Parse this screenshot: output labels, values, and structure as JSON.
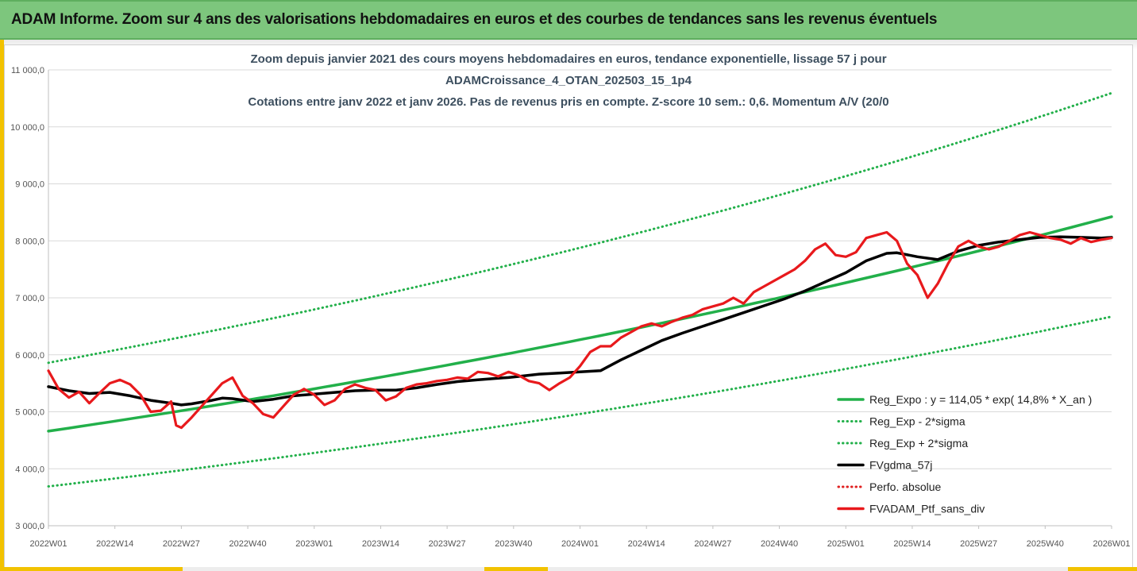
{
  "banner": {
    "title": "ADAM Informe. Zoom sur 4 ans des valorisations hebdomadaires en euros et des courbes de tendances sans les revenus éventuels"
  },
  "colors": {
    "banner_bg": "#7dc67d",
    "accent_yellow": "#f2c200",
    "title_text": "#3d4f5f"
  },
  "chart_data": {
    "type": "line",
    "title_lines": [
      "Zoom depuis janvier 2021 des cours moyens hebdomadaires  en euros, tendance exponentielle, lissage 57 j pour",
      "ADAMCroissance_4_OTAN_202503_15_1p4",
      "Cotations entre janv 2022 et janv 2026. Pas de revenus pris en compte. Z-score 10 sem.: 0,6. Momentum A/V (20/0"
    ],
    "xlabel": "",
    "ylabel": "",
    "ylim": [
      3000,
      11000
    ],
    "yticks": [
      3000,
      4000,
      5000,
      6000,
      7000,
      8000,
      9000,
      10000,
      11000
    ],
    "ytick_labels": [
      "3 000,0",
      "4 000,0",
      "5 000,0",
      "6 000,0",
      "7 000,0",
      "8 000,0",
      "9 000,0",
      "10 000,0",
      "11 000,0"
    ],
    "xlim": [
      0,
      208
    ],
    "xticks": [
      0,
      13,
      26,
      39,
      52,
      65,
      78,
      91,
      104,
      117,
      130,
      143,
      156,
      169,
      182,
      195,
      208
    ],
    "xtick_labels": [
      "2022W01",
      "2022W14",
      "2022W27",
      "2022W40",
      "2023W01",
      "2023W14",
      "2023W27",
      "2023W40",
      "2024W01",
      "2024W14",
      "2024W27",
      "2024W40",
      "2025W01",
      "2025W14",
      "2025W27",
      "2025W40",
      "2026W01"
    ],
    "grid": "horizontal",
    "legend_position": "bottom-right",
    "series": [
      {
        "name": "Reg_Expo : y = 114,05 * exp( 14,8% *  X_an )",
        "style": "solid",
        "color": "#22b04a",
        "x": [
          0,
          208
        ],
        "growth_per_year": 0.148,
        "start_value": 4660
      },
      {
        "name": "Reg_Exp - 2*sigma",
        "style": "dotted",
        "color": "#22b04a",
        "x": [
          0,
          208
        ],
        "growth_per_year": 0.148,
        "start_value": 3690
      },
      {
        "name": "Reg_Exp + 2*sigma",
        "style": "dotted",
        "color": "#22b04a",
        "x": [
          0,
          208
        ],
        "growth_per_year": 0.148,
        "start_value": 5860
      },
      {
        "name": "FVgdma_57j",
        "style": "solid",
        "color": "#000000",
        "x": [
          0,
          4,
          8,
          12,
          16,
          20,
          24,
          26,
          28,
          32,
          34,
          36,
          40,
          44,
          48,
          52,
          56,
          60,
          64,
          68,
          72,
          76,
          80,
          84,
          88,
          90,
          92,
          96,
          100,
          104,
          108,
          112,
          116,
          120,
          124,
          128,
          132,
          136,
          140,
          144,
          148,
          152,
          156,
          160,
          164,
          166,
          170,
          174,
          178,
          182,
          186,
          190,
          194,
          198,
          202,
          206,
          208
        ],
        "values": [
          5440,
          5370,
          5320,
          5340,
          5280,
          5200,
          5150,
          5120,
          5140,
          5200,
          5240,
          5230,
          5180,
          5220,
          5280,
          5310,
          5340,
          5370,
          5380,
          5380,
          5420,
          5480,
          5530,
          5560,
          5590,
          5600,
          5620,
          5660,
          5680,
          5700,
          5720,
          5910,
          6080,
          6250,
          6380,
          6500,
          6620,
          6740,
          6860,
          6980,
          7120,
          7280,
          7440,
          7650,
          7780,
          7790,
          7720,
          7670,
          7820,
          7920,
          7980,
          8020,
          8060,
          8070,
          8060,
          8050,
          8060
        ]
      },
      {
        "name": "Perfo. absolue",
        "style": "dotted",
        "color": "#e02020",
        "x": [],
        "values": []
      },
      {
        "name": "FVADAM_Ptf_sans_div",
        "style": "solid",
        "color": "#e8191c",
        "x": [
          0,
          2,
          4,
          6,
          8,
          10,
          12,
          14,
          16,
          18,
          20,
          22,
          24,
          25,
          26,
          28,
          30,
          32,
          34,
          36,
          38,
          40,
          42,
          44,
          46,
          48,
          50,
          52,
          54,
          56,
          58,
          60,
          62,
          64,
          66,
          68,
          70,
          72,
          74,
          76,
          78,
          80,
          82,
          84,
          86,
          88,
          90,
          92,
          94,
          96,
          98,
          100,
          102,
          104,
          106,
          108,
          110,
          112,
          114,
          116,
          118,
          120,
          122,
          124,
          126,
          128,
          130,
          132,
          134,
          136,
          138,
          140,
          142,
          144,
          146,
          148,
          150,
          152,
          154,
          156,
          158,
          160,
          162,
          164,
          166,
          168,
          170,
          172,
          174,
          176,
          178,
          180,
          182,
          184,
          186,
          188,
          190,
          192,
          194,
          196,
          198,
          200,
          202,
          204,
          206,
          208
        ],
        "values": [
          5720,
          5400,
          5250,
          5350,
          5150,
          5330,
          5500,
          5560,
          5480,
          5300,
          5000,
          5020,
          5180,
          4760,
          4720,
          4900,
          5100,
          5300,
          5500,
          5600,
          5280,
          5150,
          4960,
          4900,
          5100,
          5300,
          5400,
          5300,
          5120,
          5200,
          5400,
          5480,
          5420,
          5380,
          5200,
          5270,
          5420,
          5480,
          5500,
          5540,
          5560,
          5600,
          5580,
          5700,
          5680,
          5620,
          5700,
          5640,
          5540,
          5500,
          5380,
          5500,
          5600,
          5800,
          6050,
          6150,
          6150,
          6300,
          6400,
          6500,
          6550,
          6500,
          6580,
          6650,
          6700,
          6800,
          6850,
          6900,
          7000,
          6900,
          7100,
          7200,
          7300,
          7400,
          7500,
          7650,
          7850,
          7950,
          7750,
          7720,
          7800,
          8050,
          8100,
          8150,
          8000,
          7600,
          7400,
          7000,
          7250,
          7600,
          7900,
          8000,
          7900,
          7850,
          7900,
          8000,
          8100,
          8150,
          8100,
          8050,
          8020,
          7950,
          8050,
          7980,
          8020,
          8050
        ]
      }
    ]
  }
}
